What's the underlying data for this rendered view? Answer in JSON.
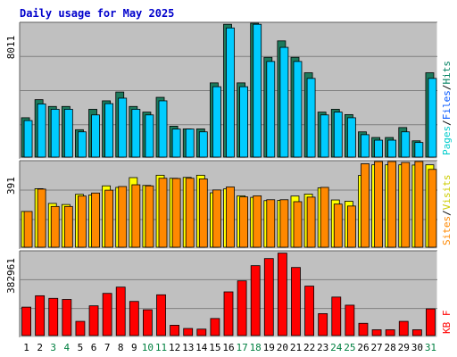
{
  "chart_data": {
    "type": "bar",
    "title": "Daily usage for May 2025",
    "categories": [
      "1",
      "2",
      "3",
      "4",
      "5",
      "6",
      "7",
      "8",
      "9",
      "10",
      "11",
      "12",
      "13",
      "14",
      "15",
      "16",
      "17",
      "18",
      "19",
      "20",
      "21",
      "22",
      "23",
      "24",
      "25",
      "26",
      "27",
      "28",
      "29",
      "30",
      "31"
    ],
    "weekend_days": [
      "3",
      "4",
      "10",
      "11",
      "17",
      "18",
      "24",
      "25",
      "31"
    ],
    "colors": {
      "title": "#0000cc",
      "background": "#ffffff",
      "plot_bg": "#c0c0c0",
      "grid": "#808080",
      "hits": "#1d7a5c",
      "files": "#00ccff",
      "pages": "#00cccc",
      "visits": "#ffff00",
      "sites": "#ff8800",
      "kbytes": "#ff0000",
      "weekday_label": "#000000",
      "weekend_label": "#008040",
      "separator_slash": "#000000"
    },
    "panels": [
      {
        "max_label": "8011",
        "ymax": 8011,
        "legend": [
          {
            "name": "Pages",
            "color": "#00cccc"
          },
          {
            "name": "/",
            "color": "#000000"
          },
          {
            "name": "Files",
            "color": "#0055ff"
          },
          {
            "name": "/",
            "color": "#000000"
          },
          {
            "name": "Hits",
            "color": "#008060"
          }
        ],
        "series": [
          {
            "name": "Hits",
            "color": "#1d7a5c",
            "values": [
              2370,
              3460,
              3050,
              3050,
              1650,
              2880,
              3390,
              3920,
              3050,
              2710,
              3600,
              1860,
              1700,
              1700,
              4470,
              8000,
              4470,
              8330,
              6010,
              7000,
              6010,
              5080,
              2710,
              2880,
              2560,
              1520,
              1180,
              1180,
              1780,
              980,
              5080
            ]
          },
          {
            "name": "Files",
            "color": "#00ccff",
            "values": [
              2200,
              3200,
              2880,
              2880,
              1520,
              2540,
              3220,
              3550,
              2880,
              2540,
              3390,
              1690,
              1690,
              1520,
              4240,
              7780,
              4240,
              8000,
              5760,
              6610,
              5760,
              4740,
              2540,
              2710,
              2370,
              1350,
              1020,
              1020,
              1520,
              880,
              4740
            ]
          }
        ]
      },
      {
        "max_label": "391",
        "ymax": 391,
        "legend": [
          {
            "name": "Sites",
            "color": "#ff8800"
          },
          {
            "name": "/",
            "color": "#000000"
          },
          {
            "name": "Visits",
            "color": "#cccc00"
          }
        ],
        "series": [
          {
            "name": "Visits",
            "color": "#ffff00",
            "values": [
              165,
              270,
              202,
              197,
              244,
              241,
              283,
              276,
              321,
              285,
              332,
              318,
              322,
              332,
              251,
              269,
              237,
              230,
              215,
              216,
              236,
              245,
              274,
              218,
              212,
              331,
              380,
              380,
              380,
              379,
              380
            ]
          },
          {
            "name": "Sites",
            "color": "#ff8800",
            "values": [
              165,
              268,
              188,
              188,
              236,
              250,
              263,
              280,
              288,
              283,
              318,
              317,
              318,
              315,
              264,
              278,
              232,
              237,
              219,
              219,
              210,
              231,
              276,
              199,
              190,
              385,
              397,
              402,
              391,
              404,
              359
            ]
          }
        ]
      },
      {
        "max_label": "382961",
        "ymax": 382961,
        "legend": [
          {
            "name": "KB F",
            "color": "#ff0000"
          }
        ],
        "series": [
          {
            "name": "KBytes",
            "color": "#ff0000",
            "values": [
              131300,
              183800,
              171800,
              166800,
              65600,
              137300,
              194700,
              223600,
              157600,
              119200,
              188200,
              47700,
              32800,
              29800,
              78800,
              201700,
              252500,
              322600,
              355400,
              380300,
              314200,
              228200,
              101300,
              177700,
              140300,
              56600,
              26800,
              26800,
              65600,
              26800,
              123300
            ]
          }
        ]
      }
    ]
  }
}
